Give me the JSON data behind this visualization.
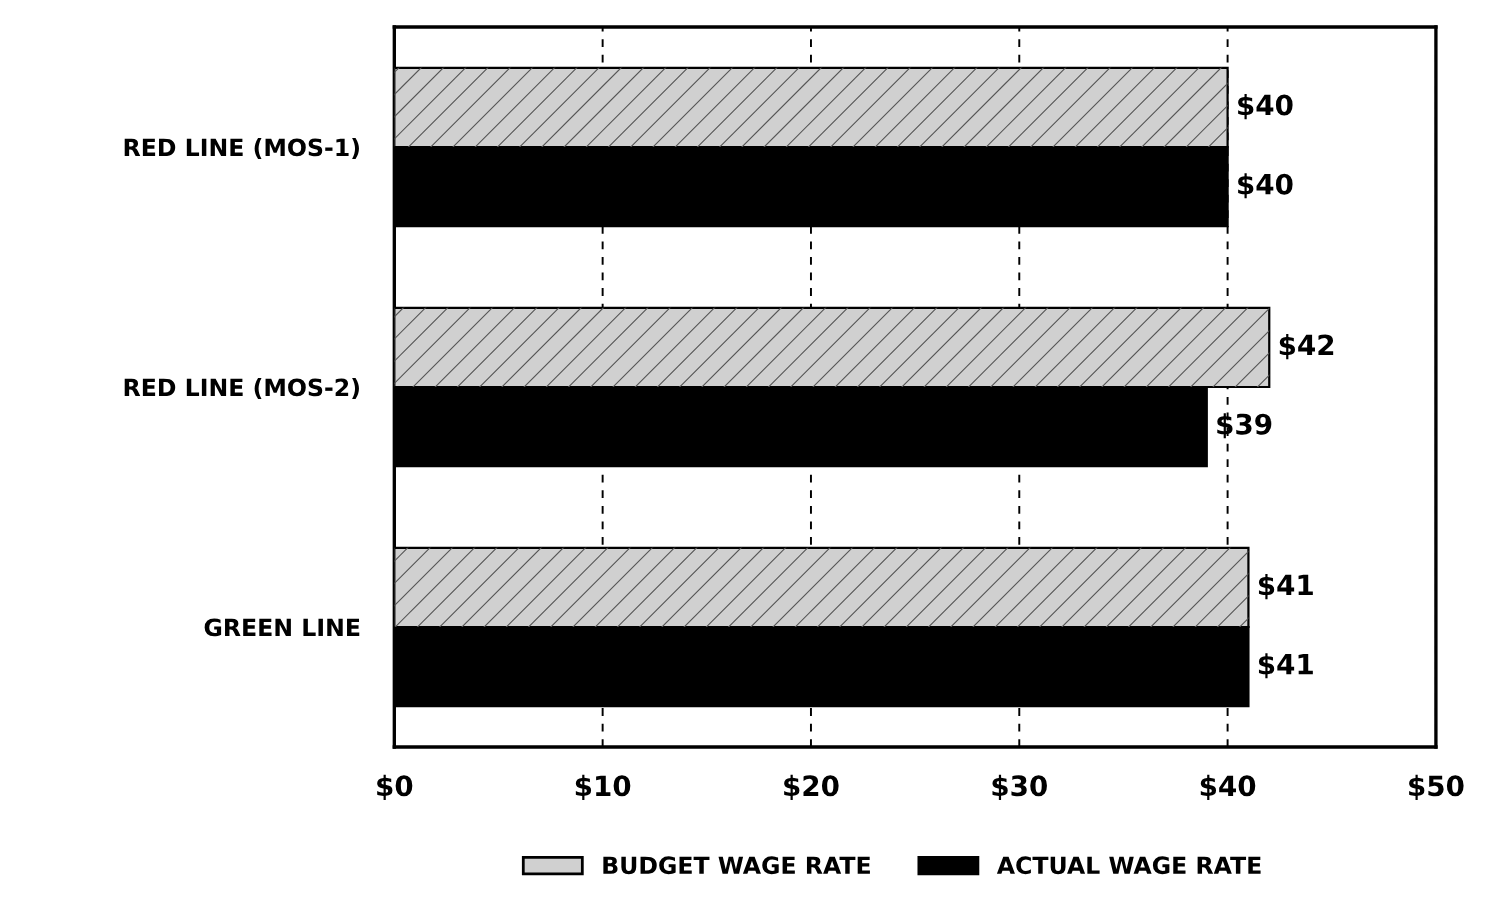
{
  "chart_data": {
    "type": "bar",
    "orientation": "horizontal",
    "categories": [
      "RED LINE (MOS-1)",
      "RED LINE (MOS-2)",
      "GREEN LINE"
    ],
    "series": [
      {
        "name": "BUDGET WAGE RATE",
        "color": "#d0d0d0",
        "values": [
          40,
          42,
          41
        ],
        "value_labels": [
          "$40",
          "$42",
          "$41"
        ]
      },
      {
        "name": "ACTUAL WAGE RATE",
        "color": "#000000",
        "values": [
          40,
          39,
          41
        ],
        "value_labels": [
          "$40",
          "$39",
          "$41"
        ]
      }
    ],
    "xlim": [
      0,
      50
    ],
    "xticks": [
      {
        "value": 0,
        "label": "$0"
      },
      {
        "value": 10,
        "label": "$10"
      },
      {
        "value": 20,
        "label": "$20"
      },
      {
        "value": 30,
        "label": "$30"
      },
      {
        "value": 40,
        "label": "$40"
      },
      {
        "value": 50,
        "label": "$50"
      }
    ],
    "grid": "x",
    "legend": "bottom"
  }
}
